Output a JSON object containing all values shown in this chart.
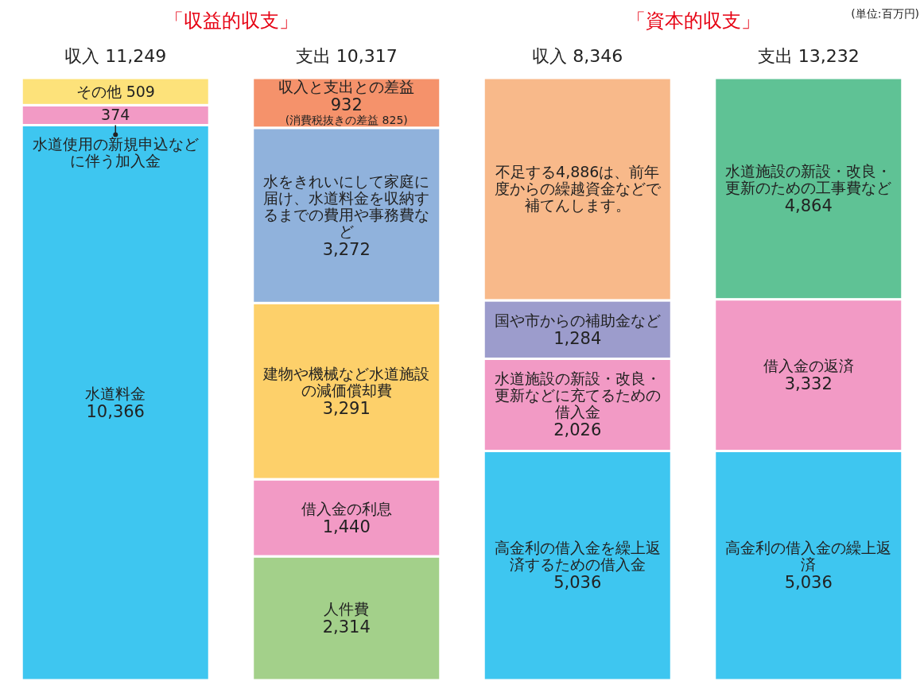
{
  "chart_data": [
    {
      "type": "bar",
      "stacked": true,
      "title": "「収益的収支」",
      "categories": [
        "収入 11,249",
        "支出 10,317"
      ],
      "series": [
        {
          "name": "水道料金",
          "color": "#3ec6f0",
          "values": [
            10366,
            null
          ],
          "value_labels": [
            "10,366",
            null
          ]
        },
        {
          "name": "水道使用の新規申込などに伴う加入金",
          "color": "#f29ac5",
          "values": [
            374,
            null
          ],
          "value_labels": [
            "374",
            null
          ]
        },
        {
          "name": "その他",
          "color": "#fde27a",
          "values": [
            509,
            null
          ],
          "value_labels": [
            "509",
            null
          ]
        },
        {
          "name": "人件費",
          "color": "#a3d08a",
          "values": [
            null,
            2314
          ],
          "value_labels": [
            null,
            "2,314"
          ]
        },
        {
          "name": "借入金の利息",
          "color": "#f29ac5",
          "values": [
            null,
            1440
          ],
          "value_labels": [
            null,
            "1,440"
          ]
        },
        {
          "name": "建物や機械など水道施設の減価償却費",
          "color": "#fdd06a",
          "values": [
            null,
            3291
          ],
          "value_labels": [
            null,
            "3,291"
          ]
        },
        {
          "name": "水をきれいにして家庭に届け、水道料金を収納するまでの費用や事務費など",
          "color": "#90b2dc",
          "values": [
            null,
            3272
          ],
          "value_labels": [
            null,
            "3,272"
          ]
        },
        {
          "name": "収入と支出との差益",
          "color": "#f5926b",
          "values": [
            null,
            932
          ],
          "value_labels": [
            null,
            "932"
          ]
        }
      ],
      "annotations": [
        {
          "text": "(消費税抜きの差益 825)",
          "x": "支出 10,317",
          "y": 10317
        }
      ]
    },
    {
      "type": "bar",
      "stacked": true,
      "title": "「資本的収支」",
      "categories": [
        "収入 8,346",
        "支出 13,232"
      ],
      "series": [
        {
          "name": "高金利の借入金を繰上返済するための借入金",
          "color": "#3ec6f0",
          "values": [
            5036,
            null
          ],
          "value_labels": [
            "5,036",
            null
          ]
        },
        {
          "name": "水道施設の新設・改良・更新などに充てるための借入金",
          "color": "#f29ac5",
          "values": [
            2026,
            null
          ],
          "value_labels": [
            "2,026",
            null
          ]
        },
        {
          "name": "国や市からの補助金など",
          "color": "#9c9ccc",
          "values": [
            1284,
            null
          ],
          "value_labels": [
            "1,284",
            null
          ]
        },
        {
          "name": "不足する4,886は、前年度からの繰越資金などで補てんします。",
          "color": "#f8b98a",
          "values": [
            4886,
            null
          ]
        },
        {
          "name": "高金利の借入金の繰上返済",
          "color": "#3ec6f0",
          "values": [
            null,
            5036
          ],
          "value_labels": [
            null,
            "5,036"
          ]
        },
        {
          "name": "借入金の返済",
          "color": "#f29ac5",
          "values": [
            null,
            3332
          ],
          "value_labels": [
            null,
            "3,332"
          ]
        },
        {
          "name": "水道施設の新設・改良・更新のための工事費など",
          "color": "#5fc295",
          "values": [
            null,
            4864
          ],
          "value_labels": [
            null,
            "4,864"
          ]
        }
      ],
      "annotations": [
        "(単位:百万円)"
      ]
    }
  ]
}
